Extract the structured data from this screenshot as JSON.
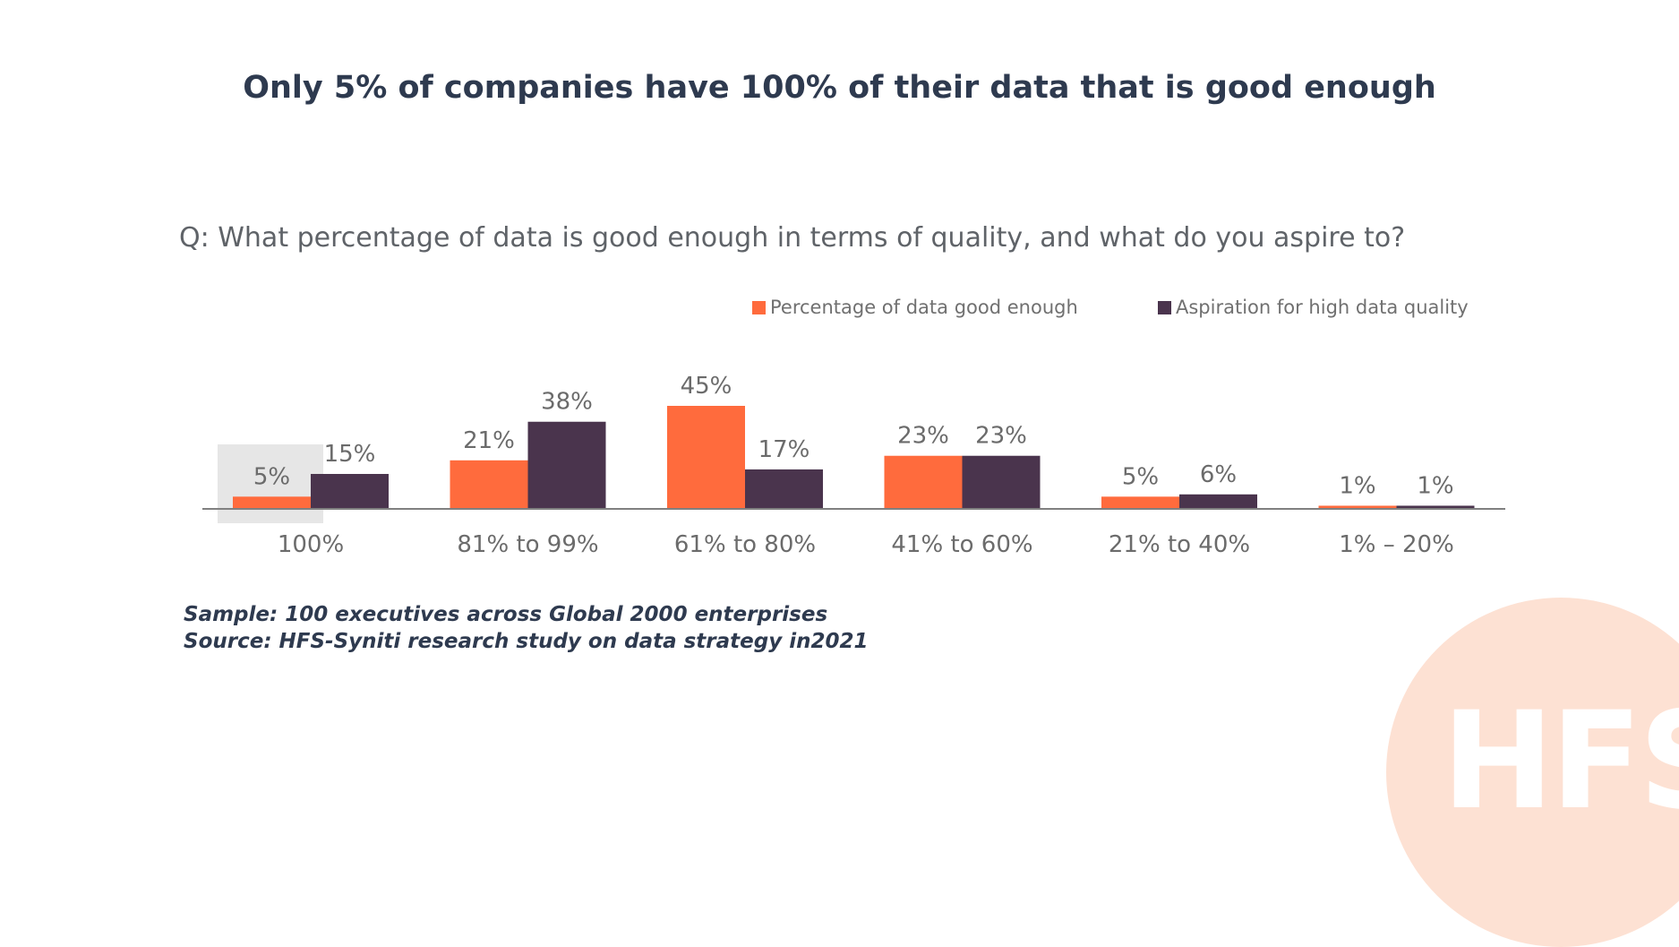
{
  "header": {
    "title": "Only 5% of companies have 100% of their data that is good enough",
    "question": "Q:  What percentage of data is good enough in terms of quality, and what do you aspire to?"
  },
  "chart_data": {
    "type": "bar",
    "categories": [
      "100%",
      "81% to 99%",
      "61% to 80%",
      "41% to 60%",
      "21% to 40%",
      "1% – 20%"
    ],
    "series": [
      {
        "name": "Percentage of data good enough",
        "color": "#ff6b3d",
        "values": [
          5,
          21,
          45,
          23,
          5,
          1
        ],
        "labels": [
          "5%",
          "21%",
          "45%",
          "23%",
          "5%",
          "1%"
        ]
      },
      {
        "name": "Aspiration for high data quality",
        "color": "#4a344d",
        "values": [
          15,
          38,
          17,
          23,
          6,
          1
        ],
        "labels": [
          "15%",
          "38%",
          "17%",
          "23%",
          "6%",
          "1%"
        ]
      }
    ],
    "highlighted_category": "100%",
    "ylim": [
      0,
      45
    ],
    "legend_position": "top-right",
    "grid": false
  },
  "notes": {
    "sample": "Sample:  100 executives across Global 2000 enterprises",
    "source": "Source: HFS-Syniti research study on data strategy in2021"
  },
  "logo": {
    "text": "HFS"
  }
}
